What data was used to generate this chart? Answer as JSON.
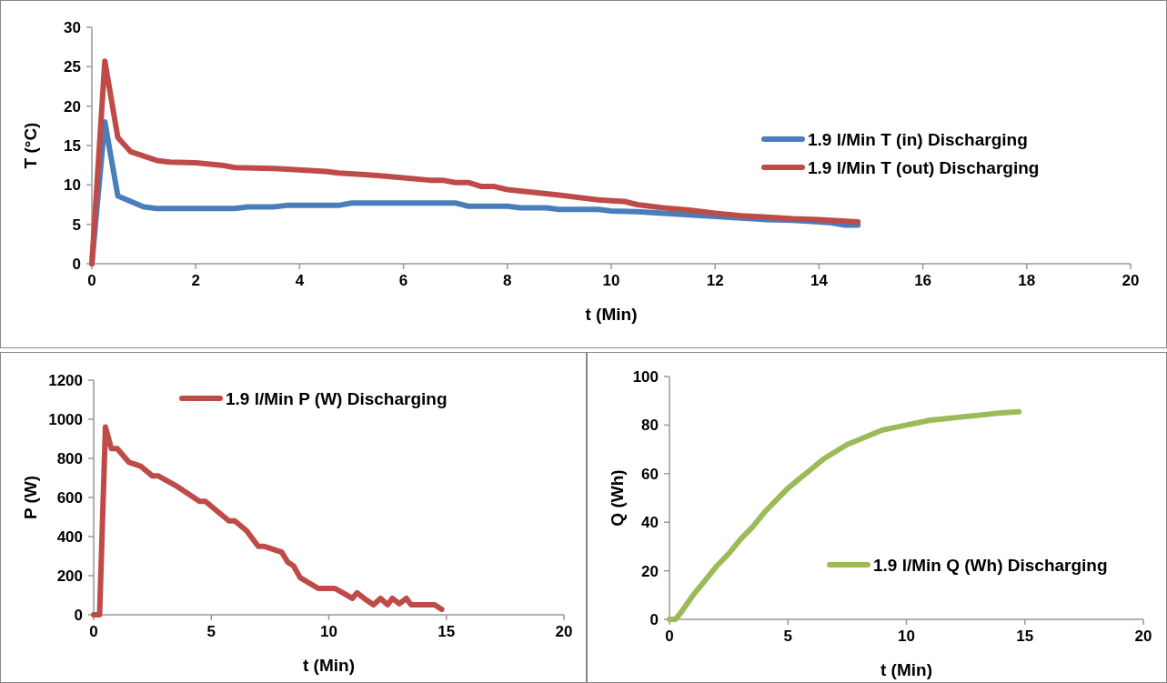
{
  "chart_data": [
    {
      "type": "line",
      "xlabel": "t (Min)",
      "ylabel": "T (°C)",
      "xlim": [
        0,
        20
      ],
      "xticks": [
        0,
        2,
        4,
        6,
        8,
        10,
        12,
        14,
        16,
        18,
        20
      ],
      "ylim": [
        0,
        30
      ],
      "yticks": [
        0,
        5,
        10,
        15,
        20,
        25,
        30
      ],
      "legend": "right",
      "series": [
        {
          "name": "1.9 l/Min T (in) Discharging",
          "color": "#4a7ebb",
          "x": [
            0,
            0.25,
            0.5,
            1,
            1.25,
            2.75,
            3,
            3.5,
            3.75,
            4.75,
            5,
            7,
            7.25,
            8,
            8.25,
            8.75,
            9,
            9.75,
            10,
            10.5,
            11,
            11.5,
            12,
            12.5,
            13,
            13.5,
            14,
            14.25,
            14.5,
            14.75
          ],
          "values": [
            0,
            18,
            8.6,
            7.2,
            7,
            7,
            7.2,
            7.2,
            7.4,
            7.4,
            7.7,
            7.7,
            7.3,
            7.3,
            7.1,
            7.1,
            6.9,
            6.9,
            6.7,
            6.6,
            6.4,
            6.2,
            6,
            5.8,
            5.6,
            5.5,
            5.3,
            5.2,
            4.9,
            4.9
          ]
        },
        {
          "name": "1.9 l/Min T (out) Discharging",
          "color": "#be4b48",
          "x": [
            0,
            0.25,
            0.5,
            0.75,
            1.25,
            1.5,
            2,
            2.5,
            2.75,
            3.5,
            3.75,
            4.5,
            4.75,
            5.25,
            5.5,
            6,
            6.5,
            6.75,
            7,
            7.25,
            7.5,
            7.75,
            8,
            9,
            9.75,
            10,
            10.25,
            10.5,
            11,
            11.5,
            12,
            12.5,
            13,
            13.5,
            14,
            14.75
          ],
          "values": [
            0,
            25.7,
            16,
            14.2,
            13.1,
            12.9,
            12.8,
            12.5,
            12.2,
            12.1,
            12,
            11.7,
            11.5,
            11.3,
            11.2,
            10.9,
            10.6,
            10.6,
            10.3,
            10.3,
            9.8,
            9.8,
            9.4,
            8.7,
            8.1,
            8,
            7.9,
            7.5,
            7.1,
            6.8,
            6.4,
            6.1,
            5.9,
            5.7,
            5.6,
            5.3
          ]
        }
      ]
    },
    {
      "type": "line",
      "xlabel": "t (Min)",
      "ylabel": "P (W)",
      "xlim": [
        0,
        20
      ],
      "xticks": [
        0,
        5,
        10,
        15,
        20
      ],
      "ylim": [
        0,
        1200
      ],
      "yticks": [
        0,
        200,
        400,
        600,
        800,
        1000,
        1200
      ],
      "legend": "top",
      "series": [
        {
          "name": "1.9 l/Min P (W) Discharging",
          "color": "#be4b48",
          "x": [
            0,
            0.25,
            0.5,
            0.75,
            1,
            1.5,
            1.75,
            2,
            2.5,
            2.75,
            3.5,
            4.5,
            4.75,
            5.25,
            5.75,
            6,
            6.5,
            7,
            7.25,
            7.5,
            8,
            8.25,
            8.5,
            8.78,
            9.55,
            10.25,
            10.6,
            11,
            11.2,
            11.5,
            11.9,
            12.2,
            12.5,
            12.7,
            13,
            13.3,
            13.5,
            14.5,
            14.8
          ],
          "values": [
            0,
            0,
            960,
            850,
            850,
            780,
            770,
            760,
            710,
            710,
            660,
            580,
            580,
            530,
            480,
            480,
            430,
            350,
            350,
            340,
            320,
            270,
            250,
            190,
            135,
            135,
            112,
            84,
            112,
            84,
            51,
            84,
            51,
            84,
            56,
            84,
            51,
            51,
            28
          ]
        }
      ]
    },
    {
      "type": "line",
      "xlabel": "t (Min)",
      "ylabel": "Q (Wh)",
      "xlim": [
        0,
        20
      ],
      "xticks": [
        0,
        5,
        10,
        15,
        20
      ],
      "ylim": [
        0,
        100
      ],
      "yticks": [
        0,
        20,
        40,
        60,
        80,
        100
      ],
      "legend": "bottom right",
      "series": [
        {
          "name": "1.9 l/Min Q (Wh) Discharging",
          "color": "#9bbb59",
          "x": [
            0,
            0.25,
            0.5,
            1,
            1.5,
            2,
            2.5,
            3,
            3.5,
            4,
            4.5,
            5,
            5.5,
            6,
            6.5,
            7,
            7.5,
            8,
            8.5,
            9,
            9.5,
            10,
            10.5,
            11,
            11.5,
            12,
            12.5,
            13,
            13.5,
            14,
            14.75
          ],
          "values": [
            0,
            0,
            3,
            10,
            16,
            22,
            27,
            33,
            38,
            44,
            49,
            54,
            58,
            62,
            66,
            69,
            72,
            74,
            76,
            78,
            79,
            80,
            81,
            82,
            82.5,
            83,
            83.5,
            84,
            84.5,
            85,
            85.5
          ]
        }
      ]
    }
  ]
}
